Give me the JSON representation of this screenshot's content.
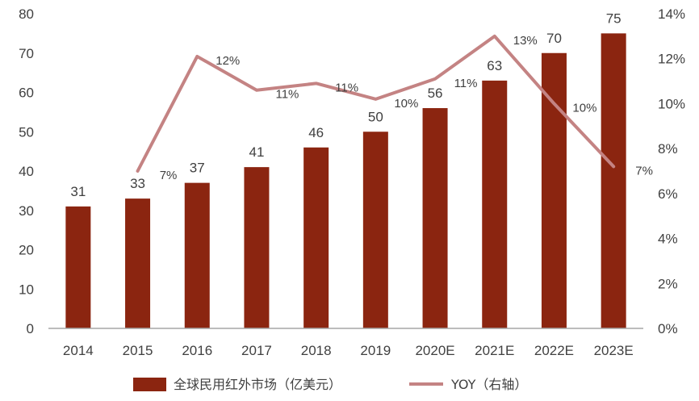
{
  "chart_data": {
    "type": "bar",
    "categories": [
      "2014",
      "2015",
      "2016",
      "2017",
      "2018",
      "2019",
      "2020E",
      "2021E",
      "2022E",
      "2023E"
    ],
    "series": [
      {
        "name": "全球民用红外市场（亿美元）",
        "axis": "left",
        "type": "bar",
        "color": "#8B2510",
        "values": [
          31,
          33,
          37,
          41,
          46,
          50,
          56,
          63,
          70,
          75
        ],
        "labels": [
          "31",
          "33",
          "37",
          "41",
          "46",
          "50",
          "56",
          "63",
          "70",
          "75"
        ]
      },
      {
        "name": "YOY（右轴）",
        "axis": "right",
        "type": "line",
        "color": "#C48383",
        "values": [
          null,
          7,
          12.1,
          10.6,
          10.9,
          10.2,
          11.1,
          13,
          10,
          7.2
        ],
        "labels": [
          null,
          "7%",
          "12%",
          "11%",
          "11%",
          "10%",
          "11%",
          "13%",
          "10%",
          "7%"
        ]
      }
    ],
    "y_left": {
      "ylim": [
        0,
        80
      ],
      "ticks": [
        "0",
        "10",
        "20",
        "30",
        "40",
        "50",
        "60",
        "70",
        "80"
      ]
    },
    "y_right": {
      "ylim": [
        0,
        14
      ],
      "ticks": [
        "0%",
        "2%",
        "4%",
        "6%",
        "8%",
        "10%",
        "12%",
        "14%"
      ]
    },
    "grid": false,
    "legend_position": "bottom"
  }
}
